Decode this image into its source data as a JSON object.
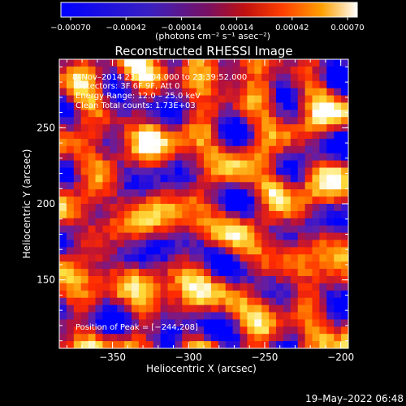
{
  "chart_data": {
    "type": "heatmap",
    "title": "Reconstructed RHESSI Image",
    "xlabel": "Heliocentric X (arcsec)",
    "ylabel": "Heliocentric Y (arcsec)",
    "xlim": [
      -385,
      -195
    ],
    "ylim": [
      105,
      295
    ],
    "xticks": [
      -350,
      -300,
      -250,
      -200
    ],
    "yticks": [
      150,
      200,
      250
    ],
    "xtick_labels": [
      "−350",
      "−300",
      "−250",
      "−200"
    ],
    "ytick_labels": [
      "150",
      "200",
      "250"
    ],
    "colorbar": {
      "range": [
        -0.0007,
        0.0007
      ],
      "tick_labels": [
        "−0.00070",
        "−0.00042",
        "−0.00014",
        "0.00014",
        "0.00042",
        "0.00070"
      ],
      "unit_label": "(photons cm⁻² s⁻¹ asec⁻²)"
    },
    "annotations": {
      "time_range": "8–Nov–2014 23:36:04.000 to 23:39:52.000",
      "detectors": "Detectors: 3F 6F 9F, Att 0",
      "energy": "Energy Range: 12.0 – 25.0 keV",
      "clean": "Clean    Total counts: 1.73E+03",
      "peak": "Position of Peak = [−244,208]"
    },
    "peak_position": [
      -244,
      208
    ]
  },
  "footer": {
    "timestamp": "19–May–2022 06:48"
  },
  "colors": {
    "background": "#000000",
    "text": "#ffffff",
    "colormap": [
      "#0000ff",
      "#5a1fb0",
      "#b01040",
      "#ff2a00",
      "#ff8c00",
      "#ffe040",
      "#ffffff"
    ]
  }
}
